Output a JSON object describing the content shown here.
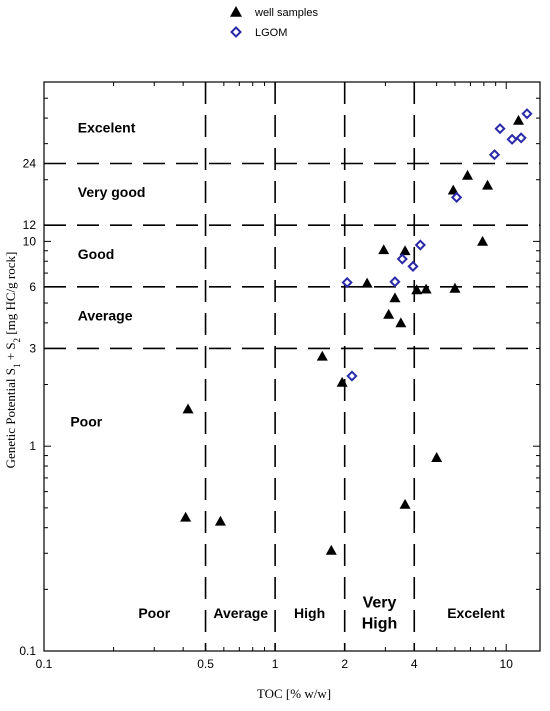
{
  "chart_data": {
    "type": "scatter",
    "x_scale": "log",
    "y_scale": "log",
    "xlim": [
      0.1,
      14
    ],
    "ylim": [
      0.1,
      60
    ],
    "xlabel": "TOC [% w/w]",
    "ylabel_main": "Genetic Potential S",
    "ylabel_sub1": "1",
    "ylabel_plus": " + S",
    "ylabel_sub2": "2",
    "ylabel_unit": " [mg HC/g rock]",
    "x_ticks": [
      {
        "value": 0.1,
        "label": "0.1"
      },
      {
        "value": 0.5,
        "label": "0.5"
      },
      {
        "value": 1,
        "label": "1"
      },
      {
        "value": 2,
        "label": "2"
      },
      {
        "value": 4,
        "label": "4"
      },
      {
        "value": 10,
        "label": "10"
      }
    ],
    "y_ticks": [
      {
        "value": 0.1,
        "label": "0.1"
      },
      {
        "value": 1,
        "label": "1"
      },
      {
        "value": 3,
        "label": "3"
      },
      {
        "value": 6,
        "label": "6"
      },
      {
        "value": 10,
        "label": "10"
      },
      {
        "value": 12,
        "label": "12"
      },
      {
        "value": 24,
        "label": "24"
      }
    ],
    "dashed_x": [
      0.5,
      1,
      2,
      4
    ],
    "dashed_y": [
      3,
      6,
      12,
      24
    ],
    "y_zones": [
      {
        "label": "Excelent",
        "x": 0.14,
        "y": 34
      },
      {
        "label": "Very good",
        "x": 0.14,
        "y": 16.5
      },
      {
        "label": "Good",
        "x": 0.14,
        "y": 8.2
      },
      {
        "label": "Average",
        "x": 0.14,
        "y": 4.1
      },
      {
        "label": "Poor",
        "x": 0.13,
        "y": 1.25
      }
    ],
    "x_zones": [
      {
        "label": "Poor",
        "x": 0.3,
        "y": 0.145
      },
      {
        "label": "Average",
        "x": 0.71,
        "y": 0.145
      },
      {
        "label": "High",
        "x": 1.41,
        "y": 0.145
      },
      {
        "label": "Very",
        "x": 2.83,
        "y": 0.163
      },
      {
        "label": "High",
        "x": 2.83,
        "y": 0.129
      },
      {
        "label": "Excelent",
        "x": 7.4,
        "y": 0.145
      }
    ],
    "legend_position": "top-center",
    "series": [
      {
        "name": "well samples",
        "marker": "triangle",
        "color": "#000000",
        "points": [
          [
            0.42,
            1.52
          ],
          [
            0.41,
            0.45
          ],
          [
            0.58,
            0.43
          ],
          [
            1.6,
            2.75
          ],
          [
            1.75,
            0.31
          ],
          [
            1.95,
            2.05
          ],
          [
            2.5,
            6.25
          ],
          [
            2.95,
            9.1
          ],
          [
            3.1,
            4.4
          ],
          [
            3.3,
            5.3
          ],
          [
            3.5,
            4.0
          ],
          [
            3.65,
            9.0
          ],
          [
            3.65,
            0.52
          ],
          [
            4.1,
            5.8
          ],
          [
            4.5,
            5.85
          ],
          [
            5.0,
            0.88
          ],
          [
            5.9,
            17.8
          ],
          [
            6.0,
            5.9
          ],
          [
            6.8,
            21.0
          ],
          [
            7.9,
            10.0
          ],
          [
            8.3,
            18.8
          ],
          [
            11.3,
            39.0
          ]
        ]
      },
      {
        "name": "LGOM",
        "marker": "diamond",
        "color": "#2a2aa8",
        "points": [
          [
            2.05,
            6.3
          ],
          [
            2.15,
            2.2
          ],
          [
            3.3,
            6.35
          ],
          [
            3.55,
            8.2
          ],
          [
            3.95,
            7.55
          ],
          [
            4.25,
            9.6
          ],
          [
            6.1,
            16.4
          ],
          [
            8.9,
            26.5
          ],
          [
            9.4,
            35.5
          ],
          [
            10.6,
            31.5
          ],
          [
            11.6,
            32.0
          ],
          [
            12.3,
            42.0
          ]
        ]
      }
    ]
  }
}
